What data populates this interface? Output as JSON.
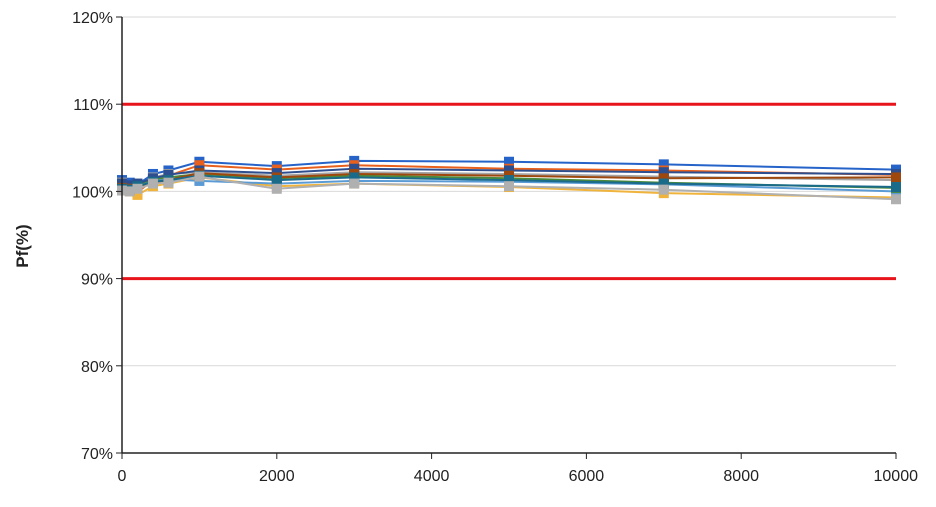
{
  "chart_data": {
    "type": "line",
    "title": "",
    "xlabel": "",
    "ylabel": "Pf(%)",
    "xlim": [
      0,
      10000
    ],
    "ylim": [
      70,
      120
    ],
    "x_ticks": [
      0,
      2000,
      4000,
      6000,
      8000,
      10000
    ],
    "x_tick_labels": [
      "0",
      "2000",
      "4000",
      "6000",
      "8000",
      "10000"
    ],
    "y_ticks": [
      70,
      80,
      90,
      100,
      110,
      120
    ],
    "y_tick_labels": [
      "70%",
      "80%",
      "90%",
      "100%",
      "110%",
      "120%"
    ],
    "grid": "horizontal",
    "legend": "none",
    "reference_lines": [
      {
        "value": 110,
        "color": "#e8141b"
      },
      {
        "value": 90,
        "color": "#e8141b"
      }
    ],
    "x": [
      0,
      100,
      200,
      400,
      600,
      1000,
      2000,
      3000,
      5000,
      7000,
      10000
    ],
    "series": [
      {
        "color": "#2563c9",
        "values": [
          101.3,
          101.0,
          100.8,
          102.0,
          102.4,
          103.4,
          102.9,
          103.5,
          103.4,
          103.1,
          102.5
        ]
      },
      {
        "color": "#e8601c",
        "values": [
          100.6,
          100.2,
          99.9,
          101.3,
          101.8,
          103.0,
          102.5,
          103.0,
          102.6,
          102.4,
          101.9
        ]
      },
      {
        "color": "#a5a5a5",
        "values": [
          101.0,
          100.5,
          100.4,
          101.6,
          102.0,
          102.2,
          101.8,
          102.2,
          102.0,
          101.7,
          101.3
        ]
      },
      {
        "color": "#f0b43c",
        "values": [
          100.2,
          100.0,
          99.6,
          100.6,
          100.9,
          101.6,
          100.6,
          100.9,
          100.5,
          99.8,
          99.3
        ]
      },
      {
        "color": "#5b9bd5",
        "values": [
          100.5,
          100.4,
          100.7,
          101.2,
          101.4,
          101.2,
          100.9,
          101.2,
          101.1,
          100.8,
          100.0
        ]
      },
      {
        "color": "#4a8a3a",
        "values": [
          100.8,
          100.6,
          100.8,
          101.4,
          101.6,
          102.0,
          101.5,
          101.8,
          101.5,
          101.0,
          100.4
        ]
      },
      {
        "color": "#2e4f8f",
        "values": [
          100.9,
          100.7,
          100.9,
          101.5,
          101.9,
          102.4,
          102.1,
          102.6,
          102.4,
          102.2,
          102.0
        ]
      },
      {
        "color": "#9e480e",
        "values": [
          100.4,
          100.3,
          100.5,
          101.0,
          101.3,
          102.1,
          101.6,
          102.0,
          101.8,
          101.5,
          101.6
        ]
      },
      {
        "color": "#1a6b8a",
        "values": [
          100.3,
          100.2,
          100.6,
          101.1,
          101.3,
          101.8,
          101.3,
          101.6,
          101.3,
          100.9,
          100.5
        ]
      },
      {
        "color": "#b0b0b0",
        "values": [
          100.1,
          100.0,
          100.3,
          100.9,
          101.0,
          101.7,
          100.3,
          100.9,
          100.6,
          100.2,
          99.1
        ]
      }
    ]
  }
}
